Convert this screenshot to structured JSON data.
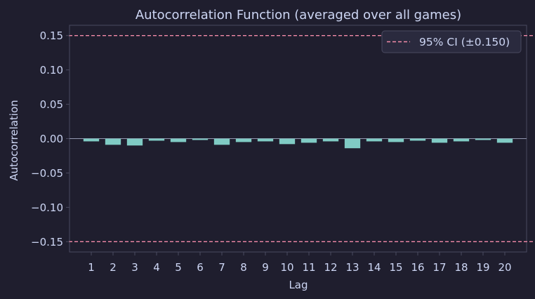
{
  "chart_data": {
    "type": "bar",
    "title": "Autocorrelation Function (averaged over all games)",
    "xlabel": "Lag",
    "ylabel": "Autocorrelation",
    "categories": [
      "1",
      "2",
      "3",
      "4",
      "5",
      "6",
      "7",
      "8",
      "9",
      "10",
      "11",
      "12",
      "13",
      "14",
      "15",
      "16",
      "17",
      "18",
      "19",
      "20"
    ],
    "values": [
      -0.004,
      -0.009,
      -0.01,
      -0.003,
      -0.005,
      -0.002,
      -0.009,
      -0.005,
      -0.004,
      -0.008,
      -0.006,
      -0.004,
      -0.014,
      -0.004,
      -0.005,
      -0.003,
      -0.006,
      -0.004,
      -0.002,
      -0.006
    ],
    "ylim": [
      -0.165,
      0.165
    ],
    "xlim": [
      0,
      21
    ],
    "yticks": [
      0.15,
      0.1,
      0.05,
      0.0,
      -0.05,
      -0.1,
      -0.15
    ],
    "ytick_labels": [
      "0.15",
      "0.10",
      "0.05",
      "0.00",
      "−0.05",
      "−0.10",
      "−0.15"
    ],
    "ci": 0.15,
    "legend": {
      "label": "95% CI (±0.150)",
      "position": "top-right"
    },
    "grid": false,
    "colors": {
      "background": "#1f1e2e",
      "bar": "#80cbc4",
      "ci_line": "#f38ba8",
      "zero_line": "#9399b2",
      "axis": "#4a4a60",
      "text": "#cdd6f4"
    }
  }
}
